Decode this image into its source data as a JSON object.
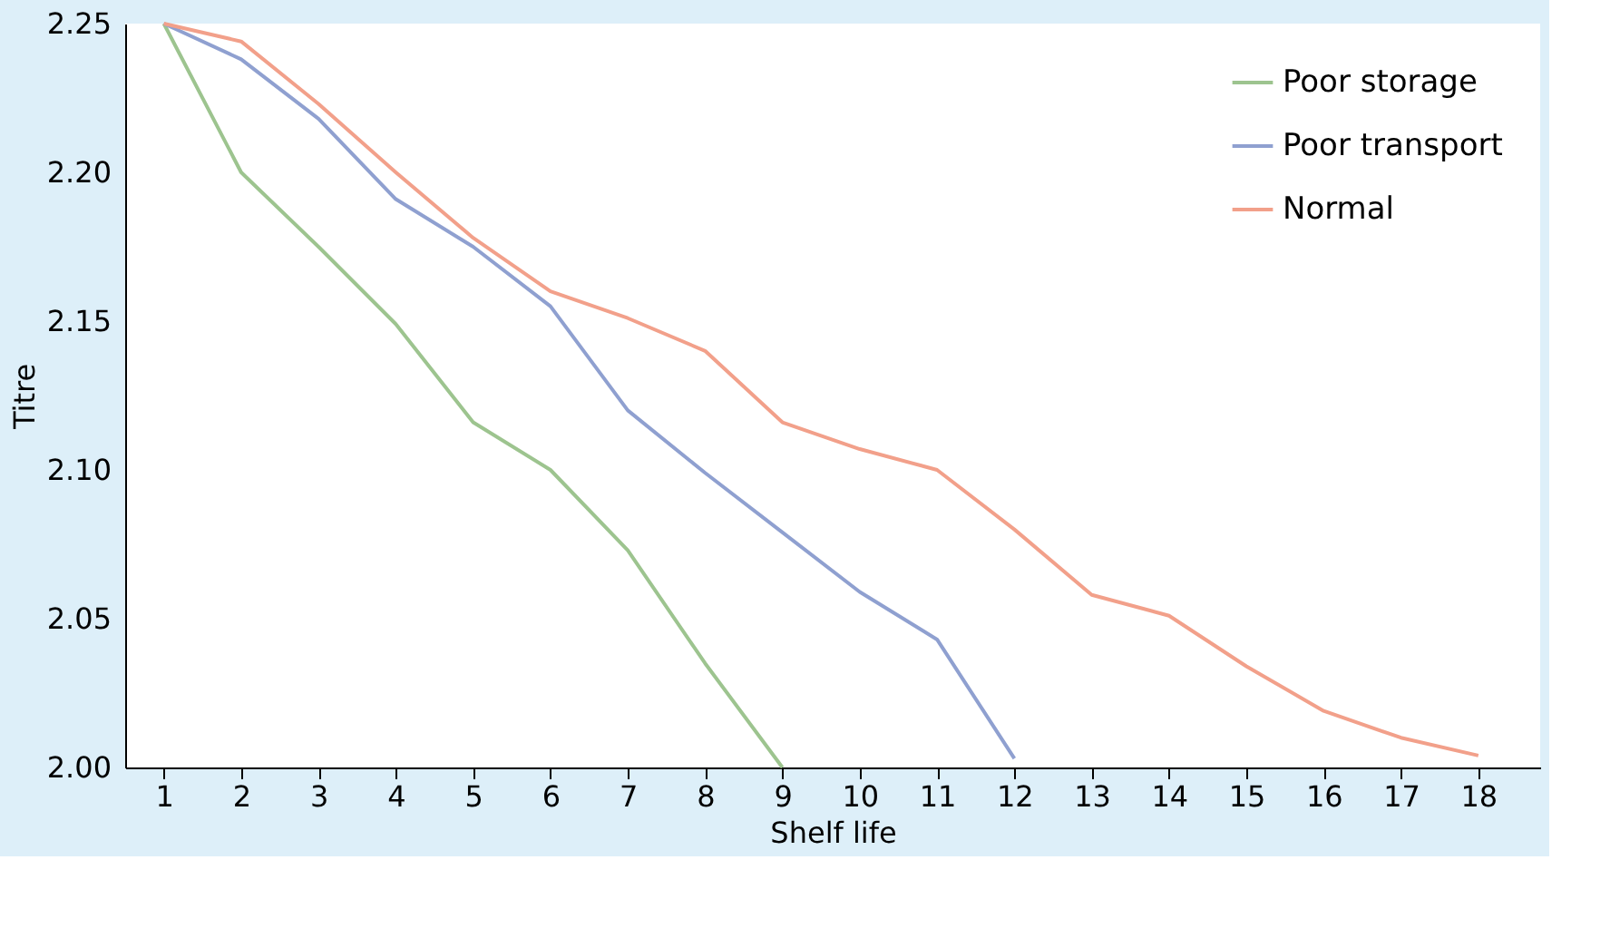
{
  "chart_data": {
    "type": "line",
    "xlabel": "Shelf life",
    "ylabel": "Titre",
    "x": [
      1,
      2,
      3,
      4,
      5,
      6,
      7,
      8,
      9,
      10,
      11,
      12,
      13,
      14,
      15,
      16,
      17,
      18
    ],
    "series": [
      {
        "name": "Poor storage",
        "color": "#9dc48f",
        "values": [
          2.25,
          2.2,
          2.175,
          2.149,
          2.116,
          2.1,
          2.073,
          2.035,
          2.0,
          null,
          null,
          null,
          null,
          null,
          null,
          null,
          null,
          null
        ]
      },
      {
        "name": "Poor transport",
        "color": "#8fa0d0",
        "values": [
          2.25,
          2.238,
          2.218,
          2.191,
          2.175,
          2.155,
          2.12,
          2.099,
          2.079,
          2.059,
          2.043,
          2.003,
          null,
          null,
          null,
          null,
          null,
          null
        ]
      },
      {
        "name": "Normal",
        "color": "#f2a08a",
        "values": [
          2.25,
          2.244,
          2.223,
          2.2,
          2.178,
          2.16,
          2.151,
          2.14,
          2.116,
          2.107,
          2.1,
          2.08,
          2.058,
          2.051,
          2.034,
          2.019,
          2.01,
          2.004
        ]
      }
    ],
    "xlim": [
      0.5,
      18.8
    ],
    "xticks": [
      1,
      2,
      3,
      4,
      5,
      6,
      7,
      8,
      9,
      10,
      11,
      12,
      13,
      14,
      15,
      16,
      17,
      18
    ],
    "ylim": [
      2.0,
      2.25
    ],
    "yticks": [
      {
        "value": 2.0,
        "label": "2.00"
      },
      {
        "value": 2.05,
        "label": "2.05"
      },
      {
        "value": 2.1,
        "label": "2.10"
      },
      {
        "value": 2.15,
        "label": "2.15"
      },
      {
        "value": 2.2,
        "label": "2.20"
      },
      {
        "value": 2.25,
        "label": "2.25"
      }
    ],
    "grid": false,
    "legend": "top right",
    "marker": "none",
    "line_style": "solid"
  }
}
